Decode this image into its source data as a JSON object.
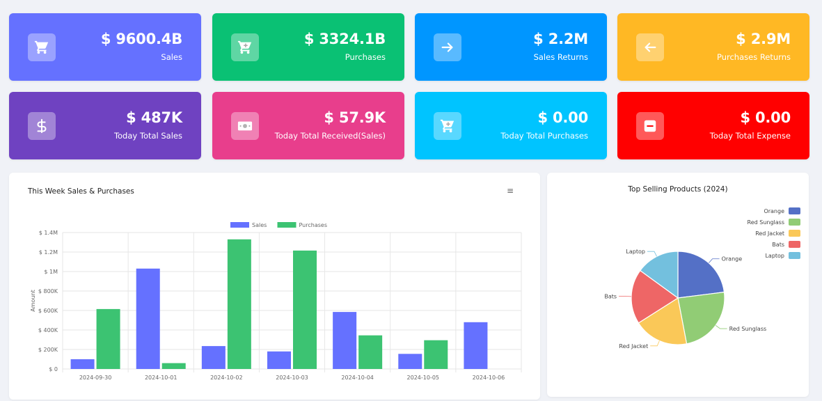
{
  "cards": [
    {
      "value": "$ 9600.4B",
      "label": "Sales",
      "color": "#6571ff",
      "icon": "cart-icon"
    },
    {
      "value": "$ 3324.1B",
      "label": "Purchases",
      "color": "#0ac174",
      "icon": "cart-plus-icon"
    },
    {
      "value": "$ 2.2M",
      "label": "Sales Returns",
      "color": "#0096ff",
      "icon": "arrow-right-icon"
    },
    {
      "value": "$ 2.9M",
      "label": "Purchases Returns",
      "color": "#ffb824",
      "icon": "arrow-left-icon"
    },
    {
      "value": "$ 487K",
      "label": "Today Total Sales",
      "color": "#6f42c1",
      "icon": "dollar-icon"
    },
    {
      "value": "$ 57.9K",
      "label": "Today Total Received(Sales)",
      "color": "#e83e8c",
      "icon": "money-icon"
    },
    {
      "value": "$ 0.00",
      "label": "Today Total Purchases",
      "color": "#00c4ff",
      "icon": "cart-plus-icon"
    },
    {
      "value": "$ 0.00",
      "label": "Today Total Expense",
      "color": "#ff0000",
      "icon": "minus-icon"
    }
  ],
  "bar_panel": {
    "title": "This Week Sales & Purchases",
    "menu_icon": "hamburger-icon"
  },
  "pie_panel": {
    "title": "Top Selling Products (2024)"
  },
  "chart_data": [
    {
      "type": "bar",
      "title": "This Week Sales & Purchases",
      "categories": [
        "2024-09-30",
        "2024-10-01",
        "2024-10-02",
        "2024-10-03",
        "2024-10-04",
        "2024-10-05",
        "2024-10-06"
      ],
      "series": [
        {
          "name": "Sales",
          "color": "#6571ff",
          "values": [
            100000,
            1030000,
            235000,
            180000,
            585000,
            155000,
            480000
          ]
        },
        {
          "name": "Purchases",
          "color": "#3cc372",
          "values": [
            615000,
            60000,
            1330000,
            1215000,
            345000,
            295000,
            0
          ]
        }
      ],
      "ylabel": "Amount",
      "yticks": [
        "$ 0",
        "$ 200K",
        "$ 400K",
        "$ 600K",
        "$ 800K",
        "$ 1M",
        "$ 1.2M",
        "$ 1.4M"
      ],
      "ylim": [
        0,
        1400000
      ],
      "legend": "top",
      "grid": true
    },
    {
      "type": "pie",
      "title": "Top Selling Products (2024)",
      "labels": [
        "Orange",
        "Red Sunglass",
        "Red Jacket",
        "Bats",
        "Laptop"
      ],
      "values": [
        23,
        24,
        19,
        19,
        15
      ],
      "colors": [
        "#5470c6",
        "#91cc75",
        "#fac858",
        "#ee6666",
        "#73c0de"
      ],
      "legend": "top-right"
    }
  ]
}
